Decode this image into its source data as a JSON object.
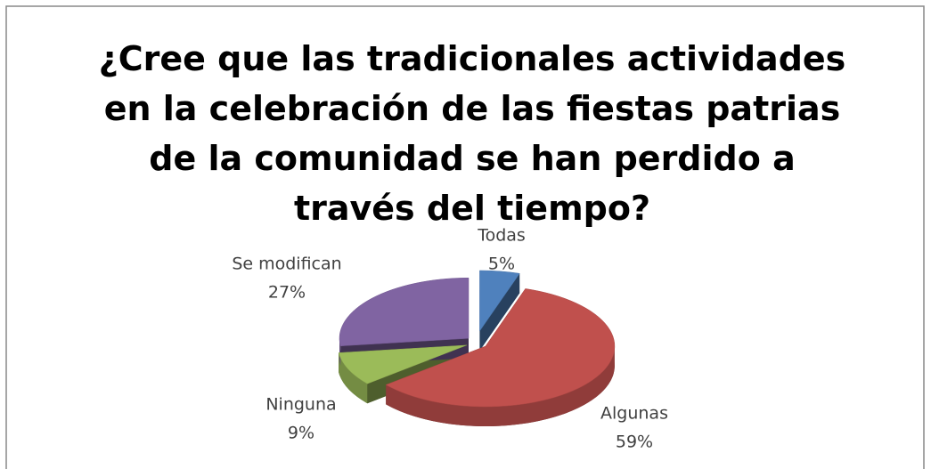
{
  "chart_data": {
    "type": "pie",
    "title": "¿Cree que las tradicionales actividades en la celebración de las fiestas patrias de la comunidad se han perdido a través del tiempo?",
    "categories": [
      "Todas",
      "Algunas",
      "Ninguna",
      "Se modifican"
    ],
    "values": [
      5,
      59,
      9,
      27
    ],
    "value_labels": [
      "5%",
      "59%",
      "9%",
      "27%"
    ],
    "colors": [
      "#4f81bd",
      "#c0504d",
      "#9bbb59",
      "#8064a2"
    ]
  }
}
